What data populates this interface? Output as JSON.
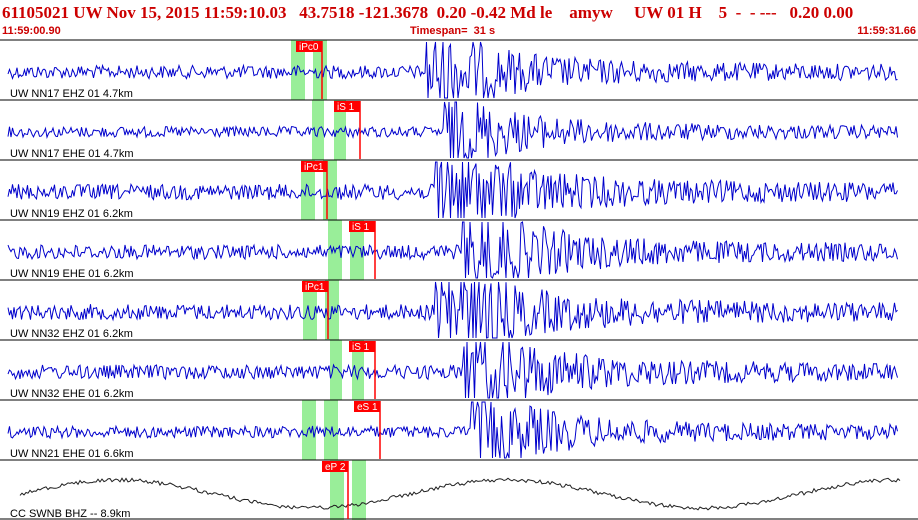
{
  "header": {
    "title": "61105021 UW Nov 15, 2015 11:59:10.03   43.7518 -121.3678  0.20 -0.42 Md le    amyw     UW 01 H    5  -  - ---   0.20 0.00",
    "start_time": "11:59:00.90",
    "timespan": "Timespan=  31 s",
    "end_time": "11:59:31.66"
  },
  "colors": {
    "trace": "#0000cc",
    "bhz_trace": "#202020",
    "pick": "#ff0000",
    "window": "#99ee99",
    "header_text": "#cc0000"
  },
  "traces": [
    {
      "label": "UW NN17 EHZ 01 4.7km",
      "pick": "iPc0",
      "amp": 2.2,
      "onset": 0.43
    },
    {
      "label": "UW NN17 EHE 01 4.7km",
      "pick": "iS 1",
      "amp": 1.8,
      "onset": 0.45
    },
    {
      "label": "UW NN19 EHZ 01 6.2km",
      "pick": "iPc1",
      "amp": 2.6,
      "onset": 0.44
    },
    {
      "label": "UW NN19 EHE 01 6.2km",
      "pick": "iS 1",
      "amp": 2.4,
      "onset": 0.47
    },
    {
      "label": "UW NN32 EHZ 01 6.2km",
      "pick": "iPc1",
      "amp": 2.6,
      "onset": 0.44
    },
    {
      "label": "UW NN32 EHE 01 6.2km",
      "pick": "iS 1",
      "amp": 2.4,
      "onset": 0.47
    },
    {
      "label": "UW NN21 EHE 01 6.6km",
      "pick": "eS 1",
      "amp": 2.0,
      "onset": 0.48
    },
    {
      "label": "CC SWNB BHZ -- 8.9km",
      "pick": "eP 2",
      "amp": 1.0,
      "onset": 0.44,
      "kind": "long-period"
    }
  ]
}
